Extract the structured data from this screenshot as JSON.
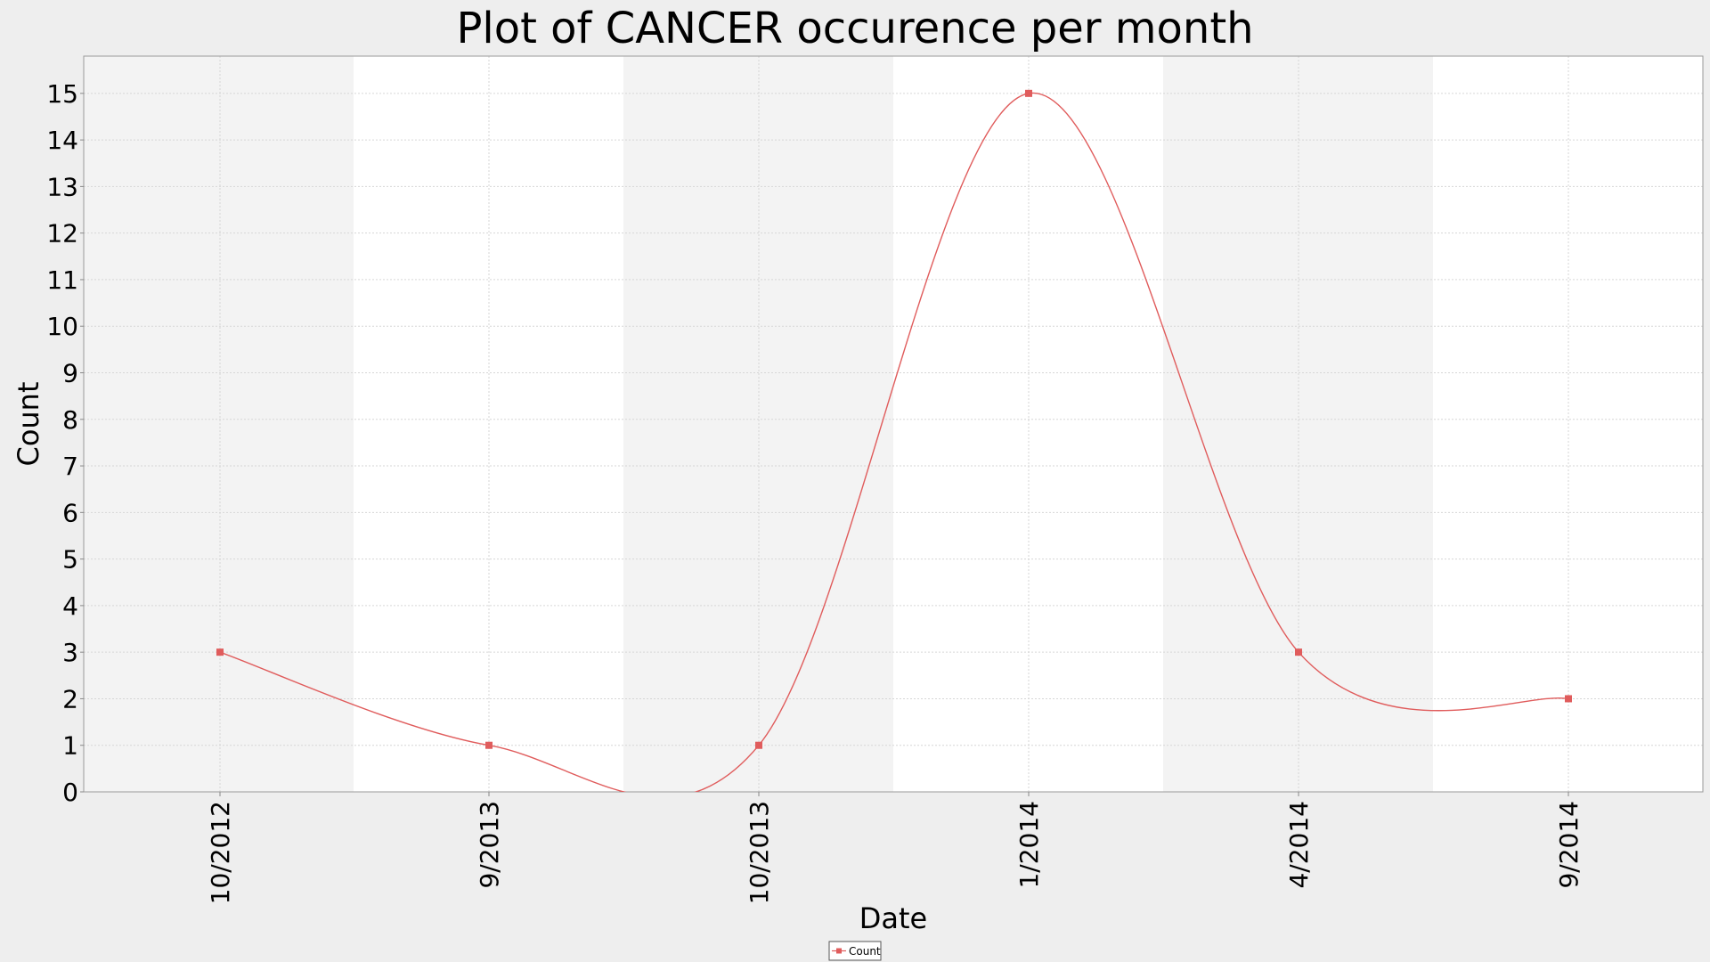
{
  "chart_data": {
    "type": "line",
    "title": "Plot of CANCER occurence per month",
    "xlabel": "Date",
    "ylabel": "Count",
    "ylim": [
      0,
      15.8
    ],
    "yticks": [
      0,
      1,
      2,
      3,
      4,
      5,
      6,
      7,
      8,
      9,
      10,
      11,
      12,
      13,
      14,
      15
    ],
    "categories": [
      "10/2012",
      "9/2013",
      "10/2013",
      "1/2014",
      "4/2014",
      "9/2014"
    ],
    "series": [
      {
        "name": "Count",
        "color": "#e05c5c",
        "values": [
          3,
          1,
          1,
          15,
          3,
          2
        ]
      }
    ],
    "grid": true,
    "legend_position": "bottom-center",
    "band_colors": [
      "#f3f3f3",
      "#ffffff"
    ]
  }
}
